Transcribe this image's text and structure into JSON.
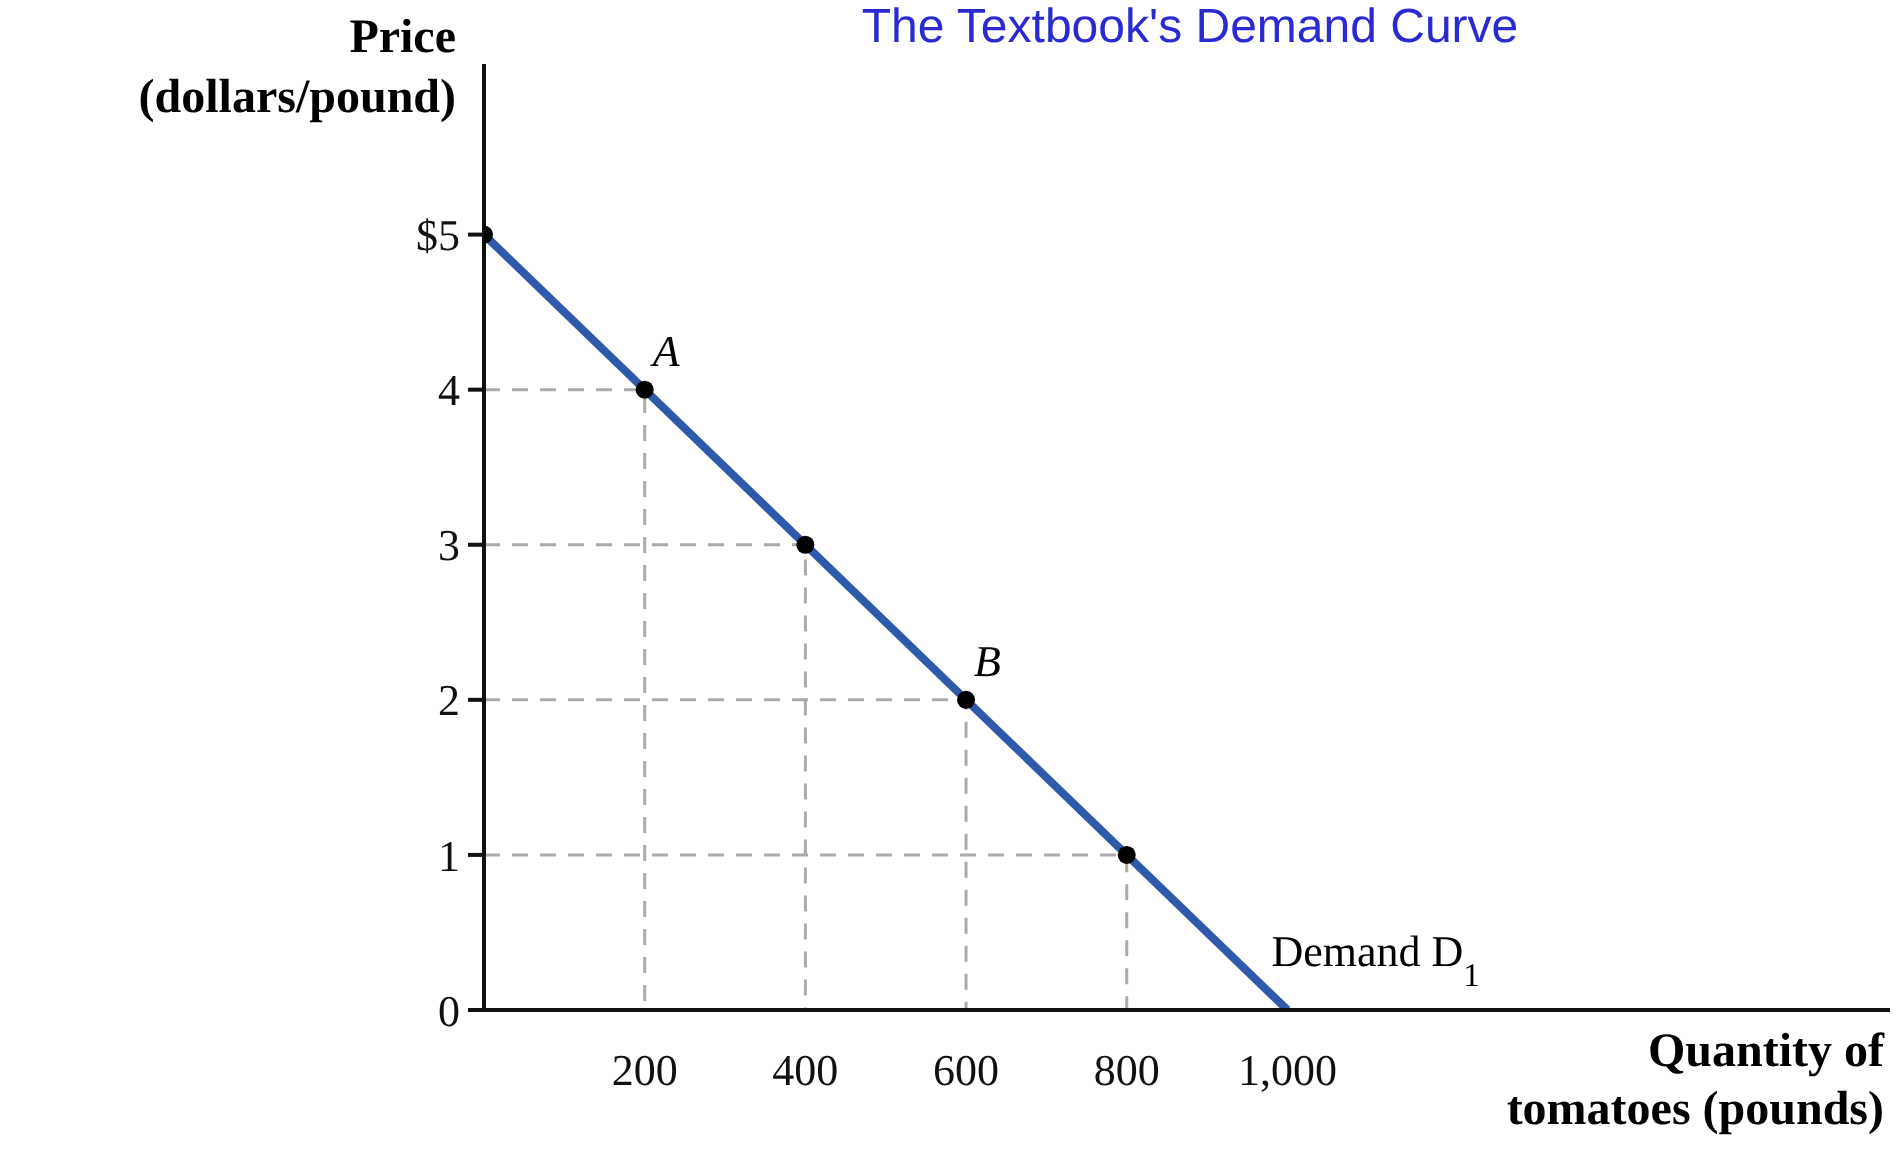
{
  "chart_data": {
    "type": "line",
    "title": "The Textbook's Demand Curve",
    "xlabel": "Quantity of\ntomatoes (pounds)",
    "ylabel": "Price\n(dollars/pound)",
    "series": [
      {
        "color": "#aaaaaa",
        "x": [
          0,
          200,
          200
        ],
        "values": [
          4,
          4,
          0
        ],
        "marker": "none",
        "line_style": "dashed"
      },
      {
        "color": "#aaaaaa",
        "x": [
          0,
          400,
          400
        ],
        "values": [
          3,
          3,
          0
        ],
        "marker": "none",
        "line_style": "dashed"
      },
      {
        "color": "#aaaaaa",
        "x": [
          0,
          600,
          600
        ],
        "values": [
          2,
          2,
          0
        ],
        "marker": "none",
        "line_style": "dashed"
      },
      {
        "color": "#aaaaaa",
        "x": [
          0,
          800,
          800
        ],
        "values": [
          1,
          1,
          0
        ],
        "marker": "none",
        "line_style": "dashed"
      },
      {
        "name": "Demand D$_{1}$",
        "color": "#2e5aac",
        "x": [
          0,
          1000
        ],
        "values": [
          5,
          0
        ],
        "marker": "none",
        "line_style": "solid"
      },
      {
        "type": "scatter",
        "color": "#000000",
        "x": [
          0,
          200,
          400,
          600,
          800
        ],
        "values": [
          5,
          4,
          3,
          2,
          1
        ],
        "marker": "circle"
      }
    ],
    "annotations": [
      {
        "text": "A",
        "x": 200,
        "y": 4
      },
      {
        "text": "B",
        "x": 600,
        "y": 2
      }
    ],
    "xlim": [
      0,
      1750
    ],
    "ylim": [
      0,
      6.1
    ],
    "xticks": [
      200,
      400,
      600,
      800,
      {
        "value": 1000,
        "label": "1,000"
      }
    ],
    "yticks": [
      {
        "value": 0,
        "label": "0"
      },
      1,
      2,
      3,
      4,
      {
        "value": 5,
        "label": "$5"
      }
    ]
  }
}
